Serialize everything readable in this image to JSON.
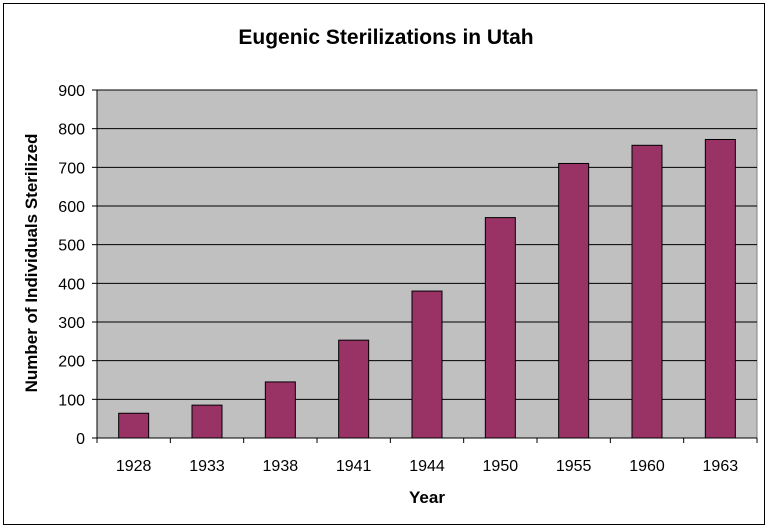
{
  "chart_data": {
    "type": "bar",
    "title": "Eugenic Sterilizations in Utah",
    "xlabel": "Year",
    "ylabel": "Number of Individuals Sterilized",
    "categories": [
      "1928",
      "1933",
      "1938",
      "1941",
      "1944",
      "1950",
      "1955",
      "1960",
      "1963"
    ],
    "values": [
      64,
      85,
      145,
      253,
      380,
      570,
      710,
      757,
      772
    ],
    "ylim": [
      0,
      900
    ],
    "yticks": [
      "0",
      "100",
      "200",
      "300",
      "400",
      "500",
      "600",
      "700",
      "800",
      "900"
    ],
    "grid": true,
    "legend": "none",
    "colors": {
      "bar": "#993366",
      "bar_stroke": "#000000",
      "plot_background": "#c0c0c0",
      "gridline": "#000000"
    }
  }
}
